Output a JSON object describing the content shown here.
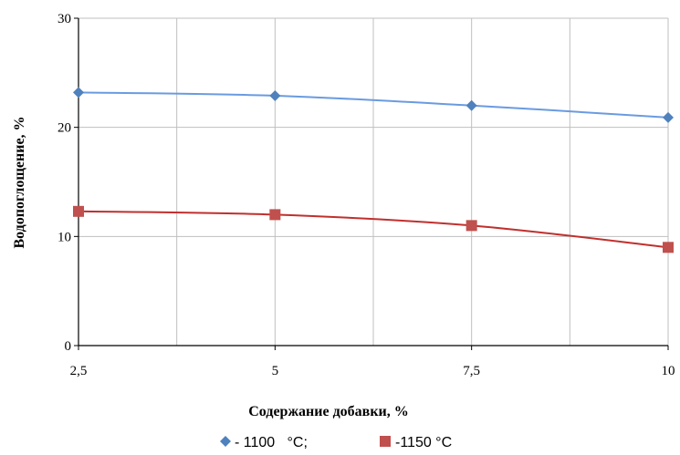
{
  "chart_data": {
    "type": "scatter",
    "title": "",
    "xlabel": "Содержание добавки, %",
    "ylabel": "Водопоглощение, %",
    "xlim": [
      2.5,
      10
    ],
    "ylim": [
      0,
      30
    ],
    "x_ticks": [
      2.5,
      5,
      7.5,
      10
    ],
    "x_tick_labels": [
      "2,5",
      "5",
      "7,5",
      "10"
    ],
    "x_minor_grid": [
      3.75,
      6.25,
      8.75
    ],
    "y_ticks": [
      0,
      10,
      20,
      30
    ],
    "y_tick_labels": [
      "0",
      "10",
      "20",
      "30"
    ],
    "grid": true,
    "legend_position": "bottom",
    "series": [
      {
        "name": "- 1100   °C;",
        "marker": "diamond",
        "color": "#4F81BD",
        "line_color": "#6A9BE0",
        "x": [
          2.5,
          5,
          7.5,
          10
        ],
        "y": [
          23.2,
          22.9,
          22.0,
          20.9
        ]
      },
      {
        "name": "-1150 °C",
        "marker": "square",
        "color": "#C0504D",
        "line_color": "#C0302D",
        "x": [
          2.5,
          5,
          7.5,
          10
        ],
        "y": [
          12.3,
          12.0,
          11.0,
          9.0
        ]
      }
    ]
  }
}
